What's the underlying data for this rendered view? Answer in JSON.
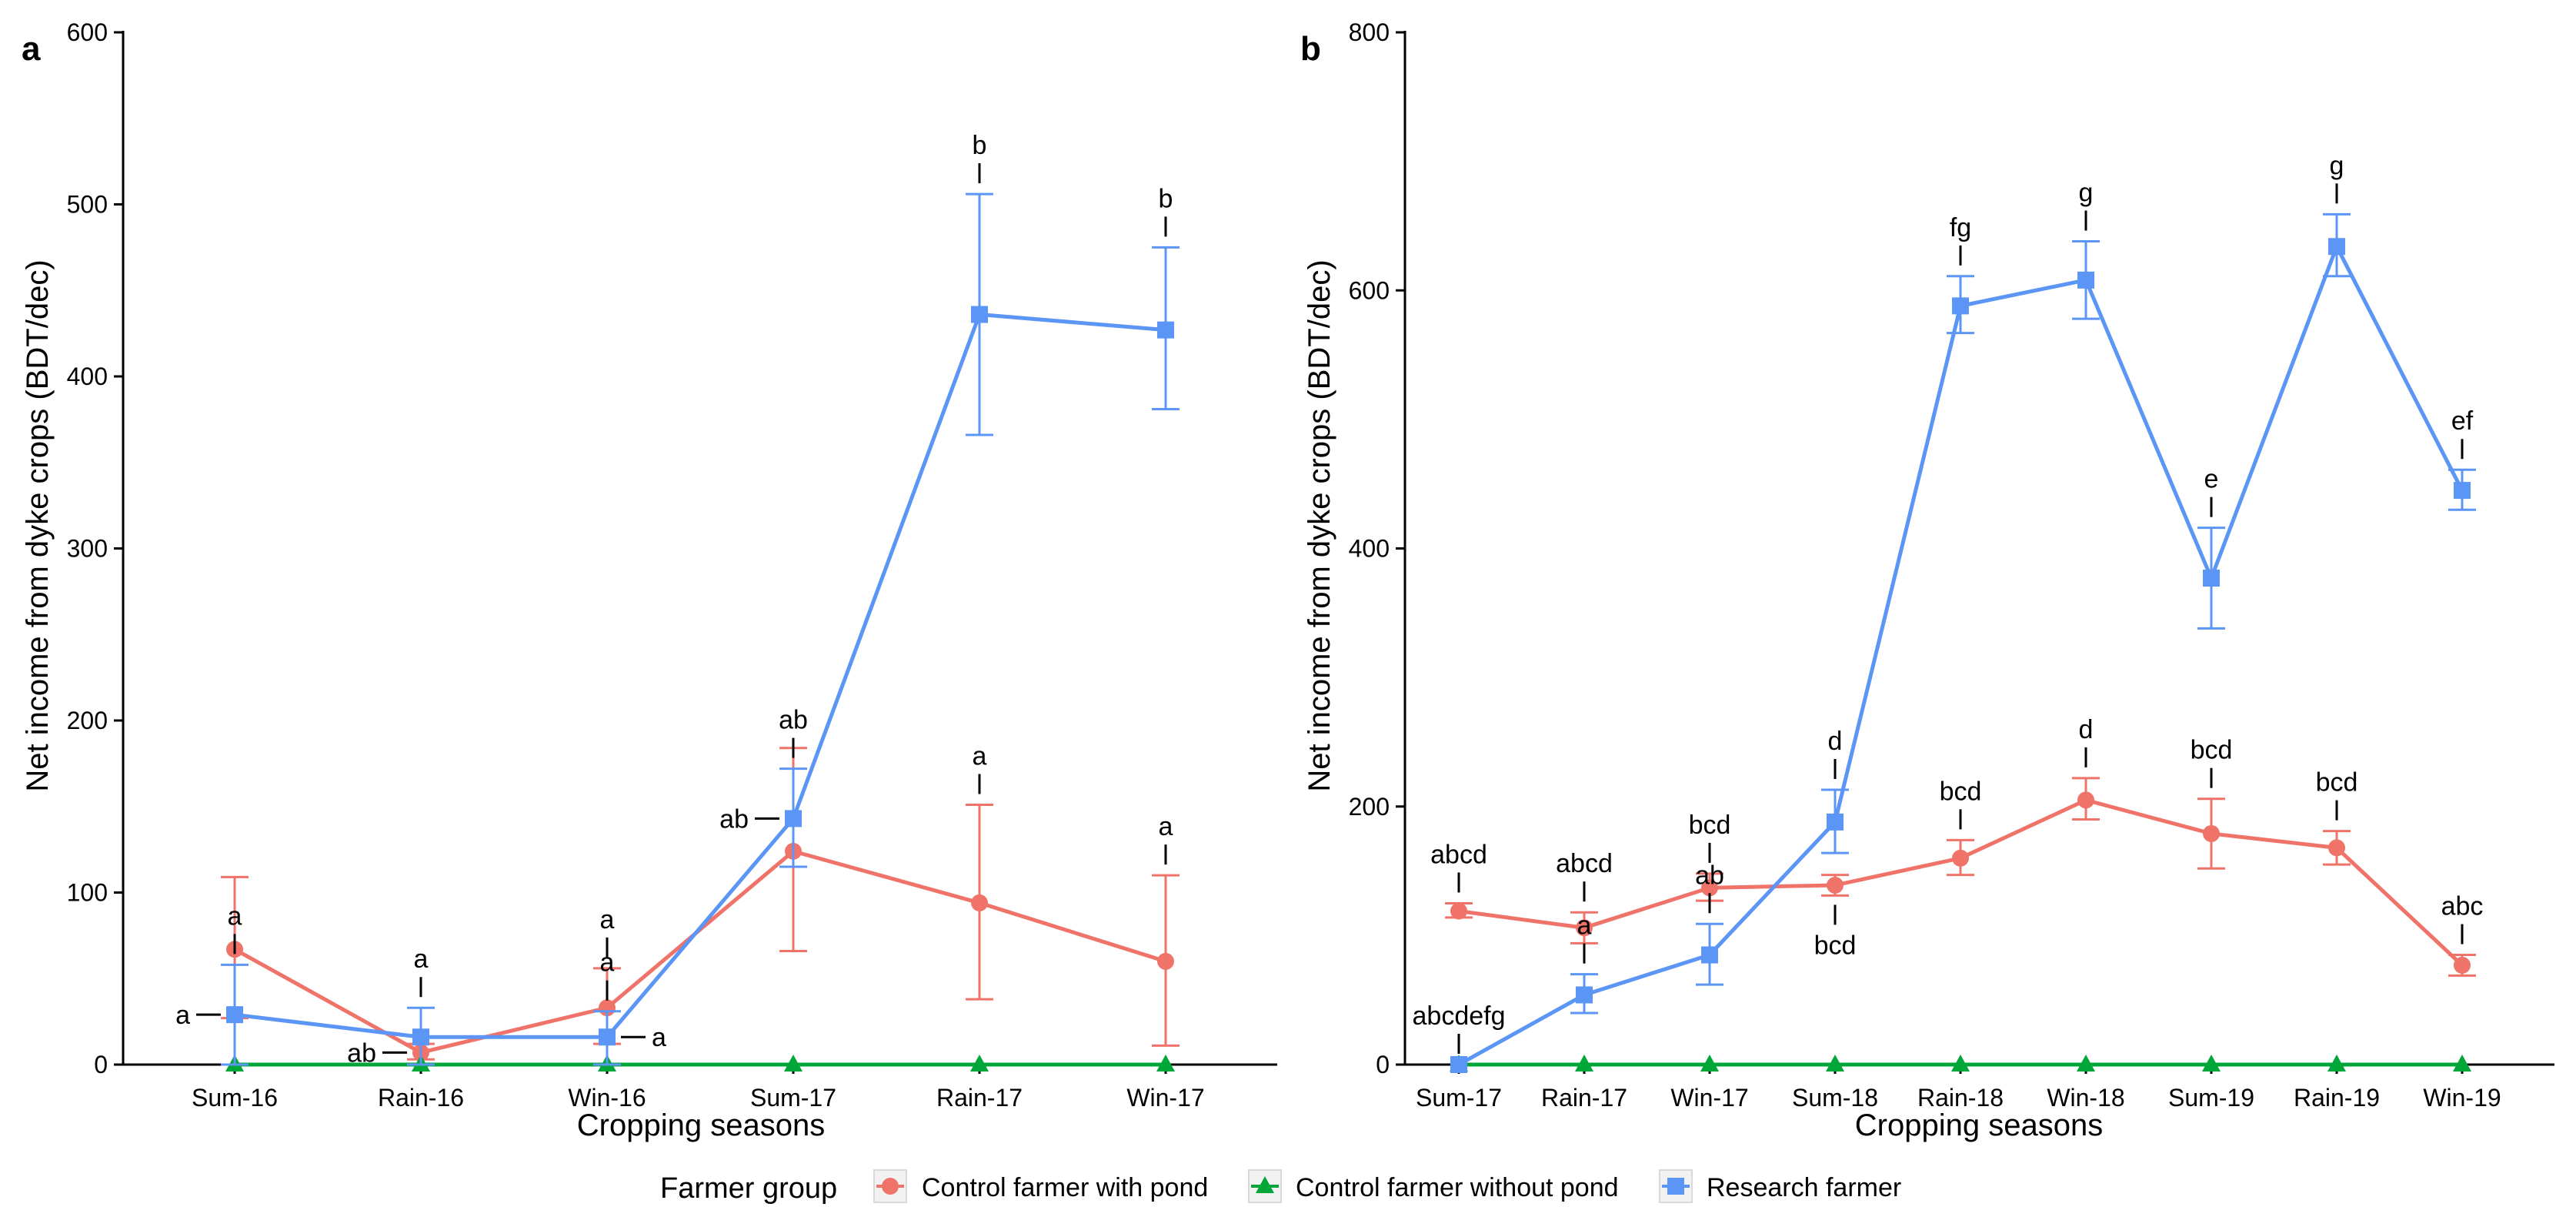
{
  "chart_data": [
    {
      "type": "line",
      "panel_label": "a",
      "xlabel": "Cropping seasons",
      "ylabel": "Net income from dyke crops (BDT/dec)",
      "categories": [
        "Sum-16",
        "Rain-16",
        "Win-16",
        "Sum-17",
        "Rain-17",
        "Win-17"
      ],
      "ylim": [
        0,
        600
      ],
      "yticks": [
        0,
        100,
        200,
        300,
        400,
        500,
        600
      ],
      "grid": false,
      "series": [
        {
          "name": "Control farmer with pond",
          "color": "#F0736A",
          "marker": "circle",
          "values": [
            67,
            7,
            33,
            124,
            94,
            60
          ],
          "err_low": [
            27,
            3,
            12,
            66,
            38,
            11
          ],
          "err_high": [
            109,
            12,
            56,
            184,
            151,
            110
          ],
          "letters": [
            "",
            "",
            "a",
            "",
            "a",
            "a"
          ]
        },
        {
          "name": "Control farmer without pond",
          "color": "#00A638",
          "marker": "triangle",
          "values": [
            0,
            0,
            0,
            0,
            0,
            0
          ],
          "letters": [
            "",
            "",
            "",
            "",
            "",
            ""
          ]
        },
        {
          "name": "Research farmer",
          "color": "#5B95F5",
          "marker": "square",
          "values": [
            29,
            16,
            16,
            143,
            436,
            427
          ],
          "err_low": [
            0,
            0,
            0,
            115,
            366,
            381
          ],
          "err_high": [
            58,
            33,
            31,
            172,
            506,
            475
          ],
          "letters": [
            "a",
            "a",
            "a",
            "ab",
            "b",
            "b"
          ]
        }
      ],
      "side_letters": [
        {
          "category": "Sum-16",
          "value": 29,
          "text": "a",
          "side": "left"
        },
        {
          "category": "Rain-16",
          "value": 7,
          "text": "ab",
          "side": "left"
        },
        {
          "category": "Win-16",
          "value": 16,
          "text": "a",
          "side": "right"
        },
        {
          "category": "Sum-17",
          "value": 143,
          "text": "ab",
          "side": "left"
        }
      ]
    },
    {
      "type": "line",
      "panel_label": "b",
      "xlabel": "Cropping seasons",
      "ylabel": "Net income from dyke crops (BDT/dec)",
      "categories": [
        "Sum-17",
        "Rain-17",
        "Win-17",
        "Sum-18",
        "Rain-18",
        "Win-18",
        "Sum-19",
        "Rain-19",
        "Win-19"
      ],
      "ylim": [
        0,
        800
      ],
      "yticks": [
        0,
        200,
        400,
        600,
        800
      ],
      "grid": false,
      "series": [
        {
          "name": "Control farmer with pond",
          "color": "#F0736A",
          "marker": "circle",
          "values": [
            119,
            106,
            137,
            139,
            160,
            205,
            179,
            168,
            77
          ],
          "err_low": [
            114,
            94,
            127,
            131,
            147,
            190,
            152,
            155,
            69
          ],
          "err_high": [
            125,
            118,
            148,
            147,
            174,
            222,
            206,
            181,
            85
          ],
          "letters": [
            "abcd",
            "abcd",
            "bcd",
            "bcd",
            "bcd",
            "d",
            "bcd",
            "bcd",
            "abc"
          ],
          "letter_side": [
            "above",
            "above",
            "above",
            "below",
            "above",
            "above",
            "above",
            "above",
            "above"
          ]
        },
        {
          "name": "Control farmer without pond",
          "color": "#00A638",
          "marker": "triangle",
          "values": [
            0,
            0,
            0,
            0,
            0,
            0,
            0,
            0,
            0
          ],
          "letters": [
            "",
            "",
            "",
            "",
            "",
            "",
            "",
            "",
            ""
          ]
        },
        {
          "name": "Research farmer",
          "color": "#5B95F5",
          "marker": "square",
          "values": [
            0,
            54,
            85,
            188,
            588,
            608,
            377,
            634,
            445
          ],
          "err_low": [
            0,
            40,
            62,
            164,
            567,
            578,
            338,
            611,
            430
          ],
          "err_high": [
            0,
            70,
            109,
            213,
            611,
            638,
            416,
            659,
            461
          ],
          "letters": [
            "abcdefg",
            "a",
            "ab",
            "d",
            "fg",
            "g",
            "e",
            "g",
            "ef"
          ]
        }
      ]
    }
  ],
  "legend": {
    "title": "Farmer group",
    "items": [
      {
        "label": "Control farmer with pond",
        "color": "#F0736A",
        "marker": "circle"
      },
      {
        "label": "Control farmer without pond",
        "color": "#00A638",
        "marker": "triangle"
      },
      {
        "label": "Research farmer",
        "color": "#5B95F5",
        "marker": "square"
      }
    ]
  }
}
